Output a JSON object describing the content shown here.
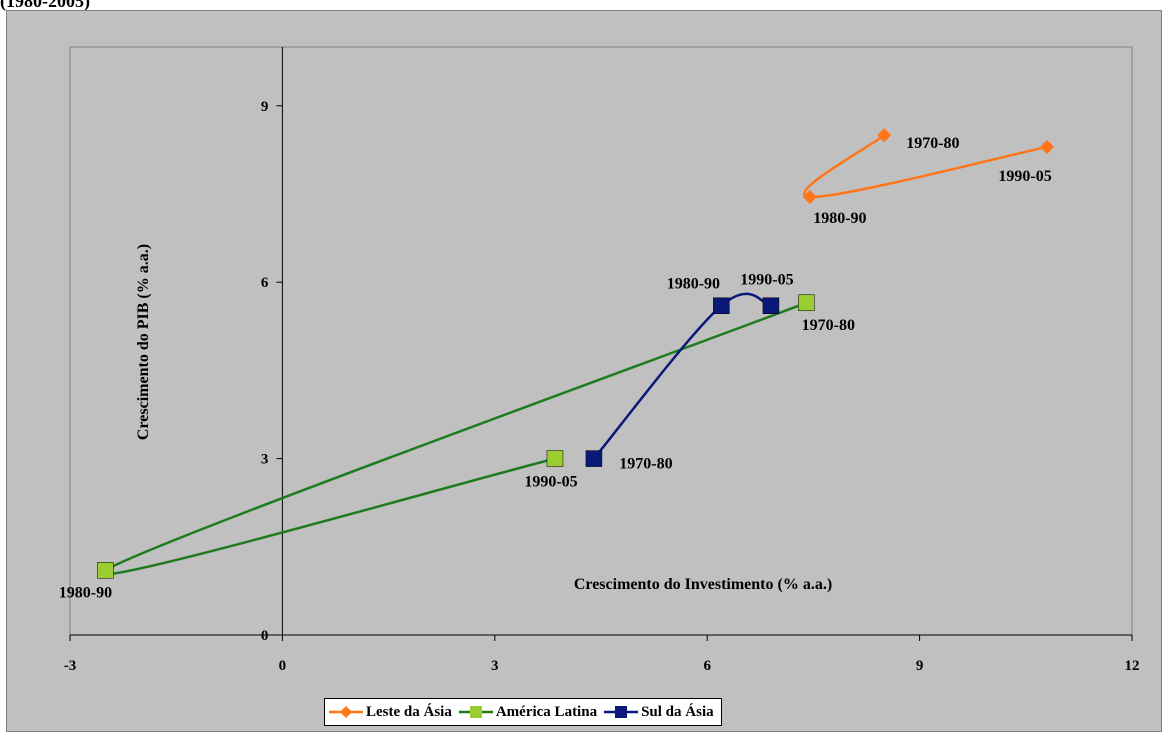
{
  "caption": "(1980-2005)",
  "colors": {
    "leste": "#ff7518",
    "america_line": "#1e7b1e",
    "america_marker": "#9acd32",
    "sul": "#0a1878",
    "plot_bg": "#c0c0c0"
  },
  "chart_data": {
    "type": "line",
    "xlabel": "Crescimento do Investimento  (% a.a.)",
    "ylabel": "Crescimento do PIB  (% a.a.)",
    "xlim": [
      -3,
      12
    ],
    "ylim": [
      0,
      10
    ],
    "xticks": [
      "-3",
      "0",
      "3",
      "6",
      "9",
      "12"
    ],
    "yticks": [
      "0",
      "3",
      "6",
      "9"
    ],
    "grid": false,
    "legend_position": "bottom",
    "series": [
      {
        "name": "Leste da Ásia",
        "marker": "diamond",
        "color": "#ff7518",
        "points": [
          {
            "x": 8.5,
            "y": 8.5,
            "label": "1970-80"
          },
          {
            "x": 7.45,
            "y": 7.45,
            "label": "1980-90"
          },
          {
            "x": 10.8,
            "y": 8.3,
            "label": "1990-05"
          }
        ]
      },
      {
        "name": "América Latina",
        "marker": "square",
        "color": "#1e7b1e",
        "marker_color": "#9acd32",
        "points": [
          {
            "x": 7.4,
            "y": 5.65,
            "label": "1970-80"
          },
          {
            "x": -2.5,
            "y": 1.1,
            "label": "1980-90"
          },
          {
            "x": 3.85,
            "y": 3.0,
            "label": "1990-05"
          }
        ]
      },
      {
        "name": "Sul da Ásia",
        "marker": "square",
        "color": "#0a1878",
        "points": [
          {
            "x": 4.4,
            "y": 3.0,
            "label": "1970-80"
          },
          {
            "x": 6.2,
            "y": 5.6,
            "label": "1980-90"
          },
          {
            "x": 6.9,
            "y": 5.6,
            "label": "1990-05"
          }
        ]
      }
    ]
  }
}
